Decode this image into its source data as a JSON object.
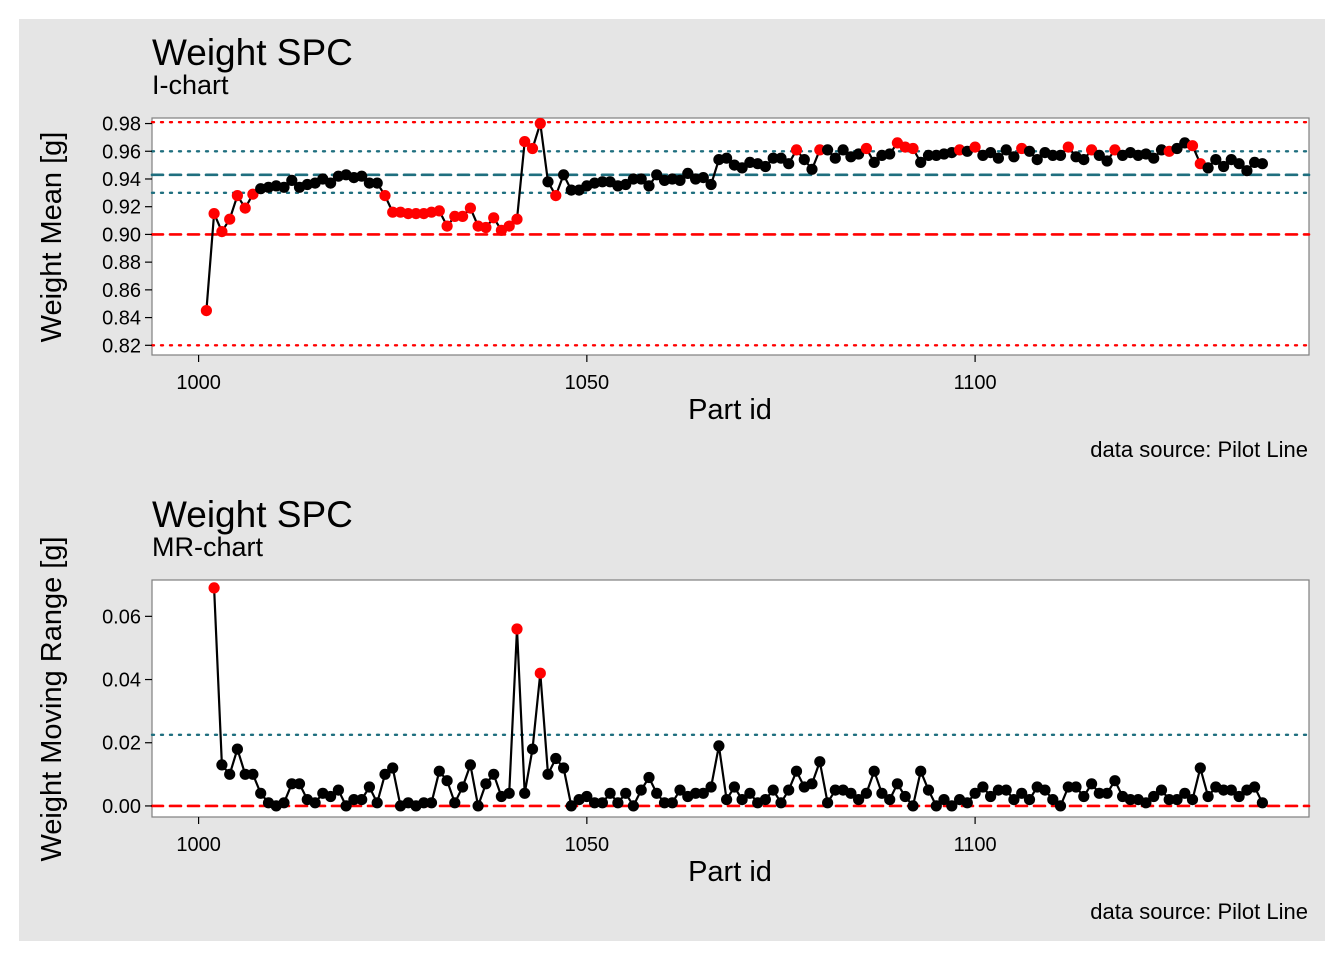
{
  "colors": {
    "background": "#e5e5e5",
    "panel": "#ffffff",
    "in_control": "#000000",
    "violation": "#ff0000",
    "center_line": "#1f6f7f",
    "sigma_line": "#1f6f7f",
    "limit_line": "#ff0000"
  },
  "chart_data": [
    {
      "type": "line",
      "title": "Weight SPC",
      "subtitle": "I-chart",
      "xlabel": "Part id",
      "ylabel": "Weight Mean [g]",
      "caption": "data source: Pilot Line",
      "xlim": [
        994,
        1143
      ],
      "ylim": [
        0.813,
        0.984
      ],
      "xticks": [
        1000,
        1050,
        1100
      ],
      "yticks": [
        0.82,
        0.84,
        0.86,
        0.88,
        0.9,
        0.92,
        0.94,
        0.96,
        0.98
      ],
      "ytick_labels": [
        "0.82",
        "0.84",
        "0.86",
        "0.88",
        "0.90",
        "0.92",
        "0.94",
        "0.96",
        "0.98"
      ],
      "reference_lines": [
        {
          "y": 0.981,
          "style": "dotted",
          "color": "#ff0000"
        },
        {
          "y": 0.96,
          "style": "dotted",
          "color": "#1f6f7f"
        },
        {
          "y": 0.943,
          "style": "dashed",
          "color": "#1f6f7f"
        },
        {
          "y": 0.93,
          "style": "dotted",
          "color": "#1f6f7f"
        },
        {
          "y": 0.9,
          "style": "dashed",
          "color": "#ff0000"
        },
        {
          "y": 0.82,
          "style": "dotted",
          "color": "#ff0000"
        }
      ],
      "x_start": 1001,
      "values": [
        0.845,
        0.915,
        0.902,
        0.911,
        0.928,
        0.919,
        0.929,
        0.933,
        0.934,
        0.935,
        0.934,
        0.939,
        0.934,
        0.936,
        0.937,
        0.94,
        0.937,
        0.942,
        0.943,
        0.941,
        0.942,
        0.937,
        0.937,
        0.928,
        0.916,
        0.916,
        0.915,
        0.915,
        0.915,
        0.916,
        0.917,
        0.906,
        0.913,
        0.913,
        0.919,
        0.906,
        0.905,
        0.912,
        0.903,
        0.906,
        0.911,
        0.967,
        0.962,
        0.98,
        0.938,
        0.928,
        0.943,
        0.932,
        0.932,
        0.935,
        0.937,
        0.938,
        0.938,
        0.935,
        0.936,
        0.94,
        0.94,
        0.935,
        0.943,
        0.939,
        0.94,
        0.939,
        0.944,
        0.94,
        0.941,
        0.936,
        0.954,
        0.955,
        0.95,
        0.948,
        0.952,
        0.951,
        0.949,
        0.955,
        0.955,
        0.951,
        0.961,
        0.954,
        0.947,
        0.961,
        0.961,
        0.955,
        0.961,
        0.956,
        0.958,
        0.962,
        0.952,
        0.957,
        0.958,
        0.966,
        0.963,
        0.962,
        0.952,
        0.957,
        0.957,
        0.958,
        0.959,
        0.961,
        0.96,
        0.963,
        0.957,
        0.959,
        0.955,
        0.961,
        0.956,
        0.962,
        0.96,
        0.954,
        0.959,
        0.957,
        0.957,
        0.963,
        0.956,
        0.954,
        0.961,
        0.957,
        0.953,
        0.961,
        0.957,
        0.959,
        0.957,
        0.958,
        0.955,
        0.961,
        0.96,
        0.962,
        0.966,
        0.964,
        0.951,
        0.948,
        0.954,
        0.949,
        0.954,
        0.951,
        0.946,
        0.952,
        0.951
      ],
      "violations": [
        1001,
        1002,
        1003,
        1004,
        1005,
        1006,
        1007,
        1024,
        1025,
        1026,
        1027,
        1028,
        1029,
        1030,
        1031,
        1032,
        1033,
        1034,
        1035,
        1036,
        1037,
        1038,
        1039,
        1040,
        1041,
        1042,
        1043,
        1044,
        1046,
        1077,
        1080,
        1086,
        1090,
        1091,
        1092,
        1098,
        1100,
        1106,
        1112,
        1115,
        1118,
        1125,
        1128,
        1129
      ]
    },
    {
      "type": "line",
      "title": "Weight SPC",
      "subtitle": "MR-chart",
      "xlabel": "Part id",
      "ylabel": "Weight Moving Range [g]",
      "caption": "data source: Pilot Line",
      "xlim": [
        994,
        1143
      ],
      "ylim": [
        -0.0035,
        0.0715
      ],
      "xticks": [
        1000,
        1050,
        1100
      ],
      "yticks": [
        0.0,
        0.02,
        0.04,
        0.06
      ],
      "ytick_labels": [
        "0.00",
        "0.02",
        "0.04",
        "0.06"
      ],
      "reference_lines": [
        {
          "y": 0.0225,
          "style": "dotted",
          "color": "#1f6f7f"
        },
        {
          "y": 0.0,
          "style": "dashed",
          "color": "#ff0000"
        }
      ],
      "x_start": 1002,
      "values": [
        0.069,
        0.013,
        0.01,
        0.018,
        0.01,
        0.01,
        0.004,
        0.001,
        0.0,
        0.001,
        0.007,
        0.007,
        0.002,
        0.001,
        0.004,
        0.003,
        0.005,
        0.0,
        0.002,
        0.002,
        0.006,
        0.001,
        0.01,
        0.012,
        0.0,
        0.001,
        0.0,
        0.001,
        0.001,
        0.011,
        0.008,
        0.001,
        0.006,
        0.013,
        0.0,
        0.007,
        0.01,
        0.003,
        0.004,
        0.056,
        0.004,
        0.018,
        0.042,
        0.01,
        0.015,
        0.012,
        0.0,
        0.002,
        0.003,
        0.001,
        0.001,
        0.004,
        0.001,
        0.004,
        0.0,
        0.005,
        0.009,
        0.004,
        0.001,
        0.001,
        0.005,
        0.003,
        0.004,
        0.004,
        0.006,
        0.019,
        0.002,
        0.006,
        0.002,
        0.004,
        0.001,
        0.002,
        0.005,
        0.001,
        0.005,
        0.011,
        0.006,
        0.007,
        0.014,
        0.001,
        0.005,
        0.005,
        0.004,
        0.002,
        0.004,
        0.011,
        0.004,
        0.002,
        0.007,
        0.003,
        0.0,
        0.011,
        0.005,
        0.0,
        0.002,
        0.0,
        0.002,
        0.001,
        0.004,
        0.006,
        0.003,
        0.005,
        0.005,
        0.002,
        0.004,
        0.002,
        0.006,
        0.005,
        0.002,
        0.0,
        0.006,
        0.006,
        0.003,
        0.007,
        0.004,
        0.004,
        0.008,
        0.003,
        0.002,
        0.002,
        0.001,
        0.003,
        0.005,
        0.002,
        0.002,
        0.004,
        0.002,
        0.012,
        0.003,
        0.006,
        0.005,
        0.005,
        0.003,
        0.005,
        0.006,
        0.001
      ],
      "violations": [
        1002,
        1041,
        1044
      ]
    }
  ]
}
